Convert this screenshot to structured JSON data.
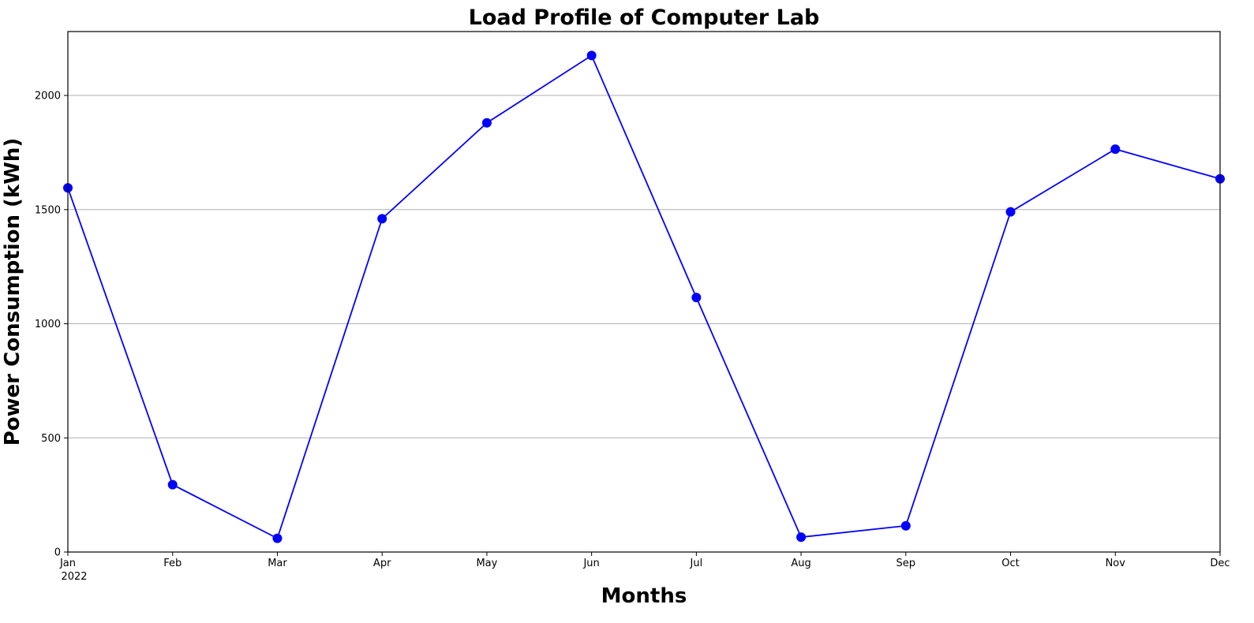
{
  "chart_data": {
    "type": "line",
    "title": "Load Profile of Computer Lab",
    "xlabel": "Months",
    "ylabel": "Power Consumption (kWh)",
    "categories": [
      "Jan",
      "Feb",
      "Mar",
      "Apr",
      "May",
      "Jun",
      "Jul",
      "Aug",
      "Sep",
      "Oct",
      "Nov",
      "Dec"
    ],
    "year_label": "2022",
    "series": [
      {
        "values": [
          1595,
          295,
          60,
          1460,
          1880,
          2175,
          1115,
          65,
          115,
          1490,
          1765,
          1635
        ],
        "color": "#0000ff"
      }
    ],
    "ylim": [
      0,
      2280
    ],
    "yticks": [
      0,
      500,
      1000,
      1500,
      2000
    ],
    "grid": "y-axis only",
    "legend": "none",
    "marker": "circle"
  }
}
